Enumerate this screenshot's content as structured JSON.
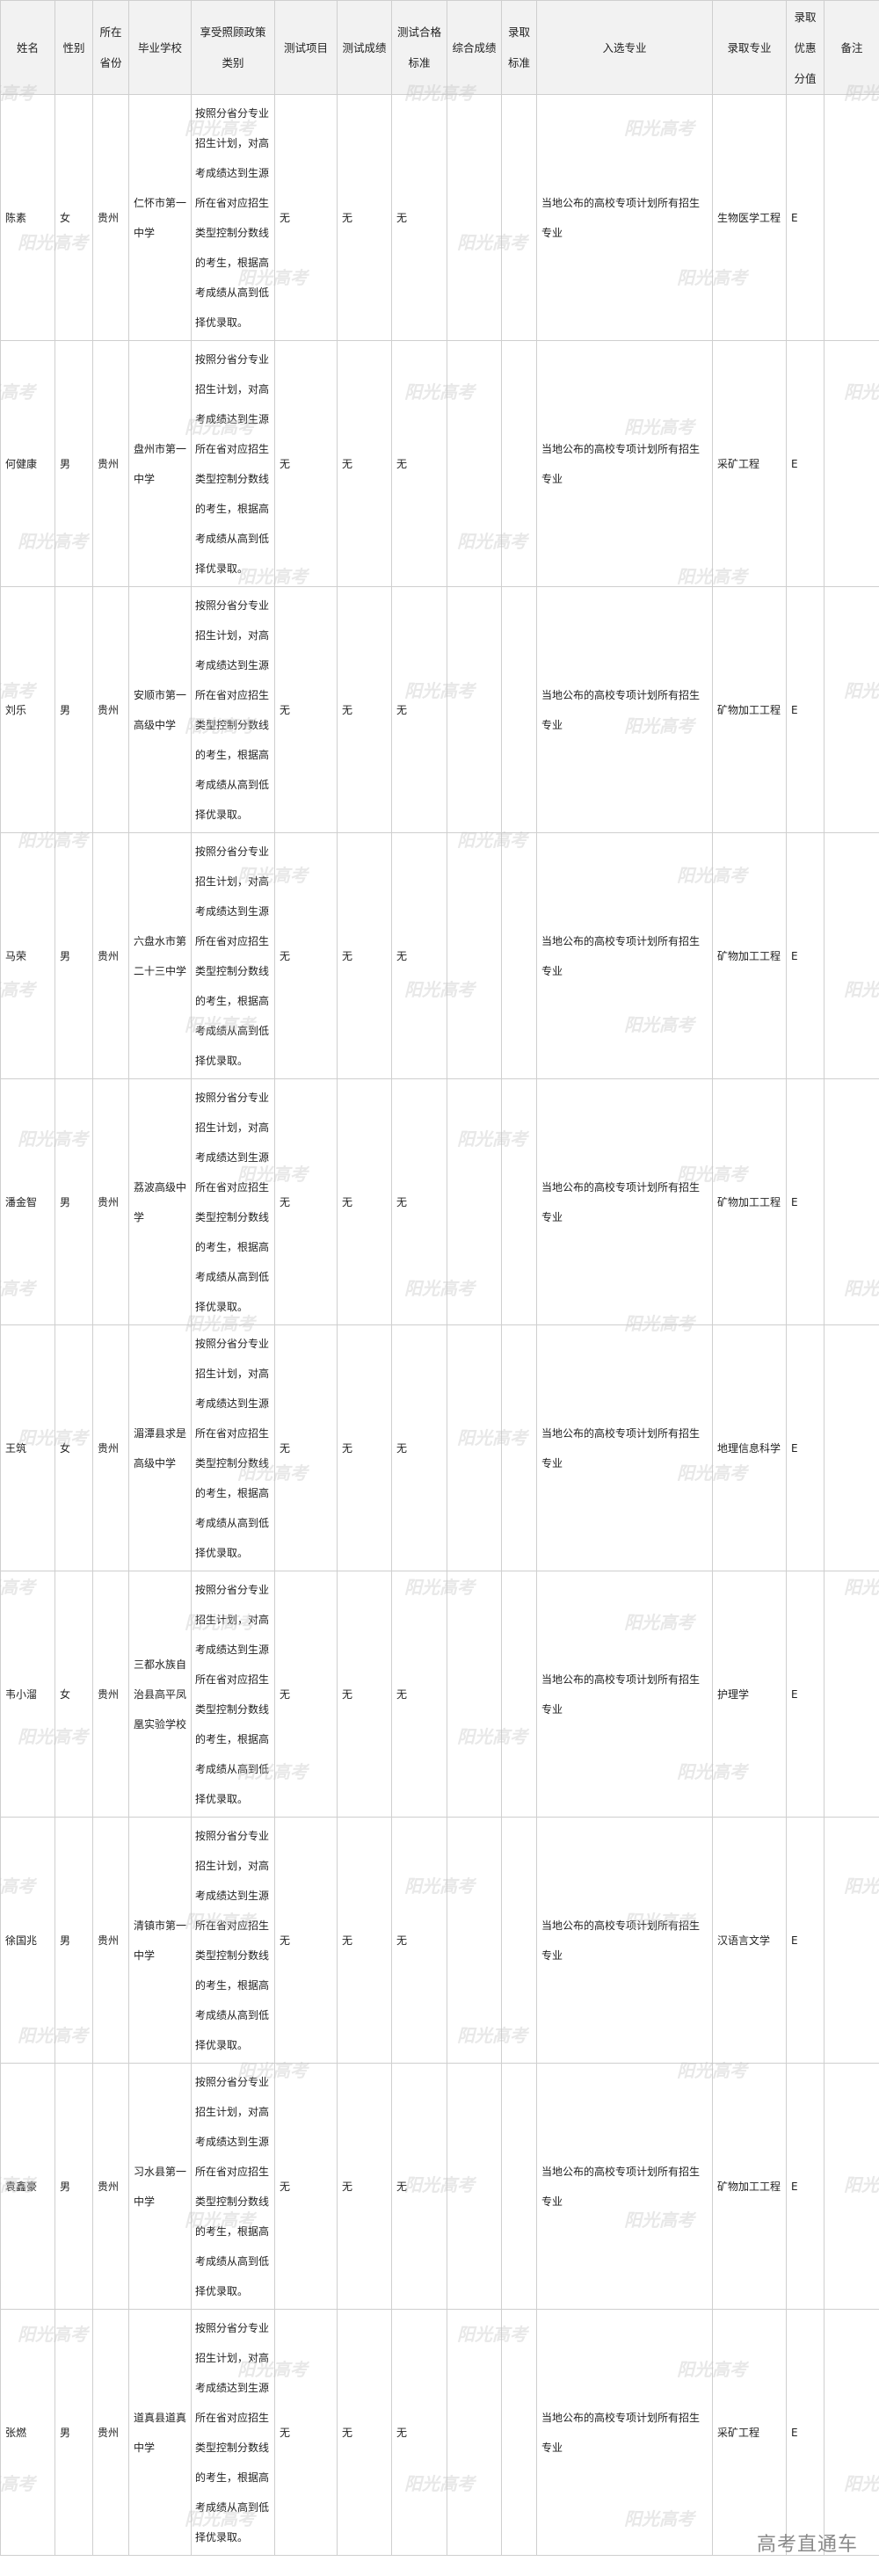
{
  "headers": [
    "姓名",
    "性别",
    "所在省份",
    "毕业学校",
    "享受照顾政策类别",
    "测试项目",
    "测试成绩",
    "测试合格标准",
    "综合成绩",
    "录取标准",
    "入选专业",
    "录取专业",
    "录取优惠分值",
    "备注"
  ],
  "policy_text": "按照分省分专业招生计划，对高考成绩达到生源所在省对应招生类型控制分数线的考生，根据高考成绩从高到低择优录取。",
  "rows": [
    {
      "name": "陈素",
      "gender": "女",
      "province": "贵州",
      "school": "仁怀市第一中学",
      "test_item": "无",
      "test_score": "无",
      "test_standard": "无",
      "overall": "",
      "admit_standard": "",
      "selected_major": "当地公布的高校专项计划所有招生专业",
      "admitted_major": "生物医学工程",
      "bonus": "E",
      "remark": ""
    },
    {
      "name": "何健康",
      "gender": "男",
      "province": "贵州",
      "school": "盘州市第一中学",
      "test_item": "无",
      "test_score": "无",
      "test_standard": "无",
      "overall": "",
      "admit_standard": "",
      "selected_major": "当地公布的高校专项计划所有招生专业",
      "admitted_major": "采矿工程",
      "bonus": "E",
      "remark": ""
    },
    {
      "name": "刘乐",
      "gender": "男",
      "province": "贵州",
      "school": "安顺市第一高级中学",
      "test_item": "无",
      "test_score": "无",
      "test_standard": "无",
      "overall": "",
      "admit_standard": "",
      "selected_major": "当地公布的高校专项计划所有招生专业",
      "admitted_major": "矿物加工工程",
      "bonus": "E",
      "remark": ""
    },
    {
      "name": "马荣",
      "gender": "男",
      "province": "贵州",
      "school": "六盘水市第二十三中学",
      "test_item": "无",
      "test_score": "无",
      "test_standard": "无",
      "overall": "",
      "admit_standard": "",
      "selected_major": "当地公布的高校专项计划所有招生专业",
      "admitted_major": "矿物加工工程",
      "bonus": "E",
      "remark": ""
    },
    {
      "name": "潘金智",
      "gender": "男",
      "province": "贵州",
      "school": "荔波高级中学",
      "test_item": "无",
      "test_score": "无",
      "test_standard": "无",
      "overall": "",
      "admit_standard": "",
      "selected_major": "当地公布的高校专项计划所有招生专业",
      "admitted_major": "矿物加工工程",
      "bonus": "E",
      "remark": ""
    },
    {
      "name": "王筑",
      "gender": "女",
      "province": "贵州",
      "school": "湄潭县求是高级中学",
      "test_item": "无",
      "test_score": "无",
      "test_standard": "无",
      "overall": "",
      "admit_standard": "",
      "selected_major": "当地公布的高校专项计划所有招生专业",
      "admitted_major": "地理信息科学",
      "bonus": "E",
      "remark": ""
    },
    {
      "name": "韦小溜",
      "gender": "女",
      "province": "贵州",
      "school": "三都水族自治县高平凤凰实验学校",
      "test_item": "无",
      "test_score": "无",
      "test_standard": "无",
      "overall": "",
      "admit_standard": "",
      "selected_major": "当地公布的高校专项计划所有招生专业",
      "admitted_major": "护理学",
      "bonus": "E",
      "remark": ""
    },
    {
      "name": "徐国兆",
      "gender": "男",
      "province": "贵州",
      "school": "清镇市第一中学",
      "test_item": "无",
      "test_score": "无",
      "test_standard": "无",
      "overall": "",
      "admit_standard": "",
      "selected_major": "当地公布的高校专项计划所有招生专业",
      "admitted_major": "汉语言文学",
      "bonus": "E",
      "remark": ""
    },
    {
      "name": "袁鑫豪",
      "gender": "男",
      "province": "贵州",
      "school": "习水县第一中学",
      "test_item": "无",
      "test_score": "无",
      "test_standard": "无",
      "overall": "",
      "admit_standard": "",
      "selected_major": "当地公布的高校专项计划所有招生专业",
      "admitted_major": "矿物加工工程",
      "bonus": "E",
      "remark": ""
    },
    {
      "name": "张燃",
      "gender": "男",
      "province": "贵州",
      "school": "道真县道真中学",
      "test_item": "无",
      "test_score": "无",
      "test_standard": "无",
      "overall": "",
      "admit_standard": "",
      "selected_major": "当地公布的高校专项计划所有招生专业",
      "admitted_major": "采矿工程",
      "bonus": "E",
      "remark": ""
    }
  ],
  "watermark": "阳光高考",
  "brand": "高考直通车"
}
